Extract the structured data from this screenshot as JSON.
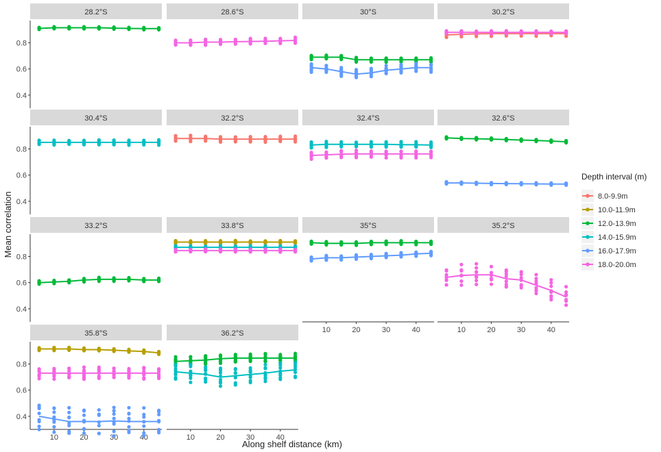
{
  "chart_data": {
    "type": "line",
    "xlabel": "Along shelf distance (km)",
    "ylabel": "Mean correlation",
    "xlim": [
      2,
      46
    ],
    "ylim": [
      0.3,
      0.97
    ],
    "x_ticks": [
      10,
      20,
      30,
      40
    ],
    "y_ticks": [
      0.4,
      0.6,
      0.8
    ],
    "x_tick_labels": [
      "10",
      "20",
      "30",
      "40"
    ],
    "y_tick_labels": [
      "0.4",
      "0.6",
      "0.8"
    ],
    "x": [
      5,
      10,
      15,
      20,
      25,
      30,
      35,
      40,
      45
    ],
    "legend": {
      "title": "Depth interval (m)",
      "position": "right",
      "entries": [
        {
          "label": "8.0-9.9m",
          "color": "#F8766D"
        },
        {
          "label": "10.0-11.9m",
          "color": "#B79F00"
        },
        {
          "label": "12.0-13.9m",
          "color": "#00BA38"
        },
        {
          "label": "14.0-15.9m",
          "color": "#00BFC4"
        },
        {
          "label": "16.0-17.9m",
          "color": "#619CFF"
        },
        {
          "label": "18.0-20.0m",
          "color": "#F564E3"
        }
      ]
    },
    "panels": [
      {
        "title": "28.2°S",
        "series": [
          {
            "name": "12.0-13.9m",
            "values": [
              0.91,
              0.915,
              0.915,
              0.915,
              0.915,
              0.912,
              0.91,
              0.908,
              0.908
            ],
            "spread": 0.015
          }
        ]
      },
      {
        "title": "28.6°S",
        "series": [
          {
            "name": "18.0-20.0m",
            "values": [
              0.8,
              0.8,
              0.805,
              0.805,
              0.808,
              0.81,
              0.812,
              0.815,
              0.818
            ],
            "spread": 0.04
          }
        ]
      },
      {
        "title": "30°S",
        "series": [
          {
            "name": "12.0-13.9m",
            "values": [
              0.69,
              0.69,
              0.69,
              0.67,
              0.67,
              0.67,
              0.67,
              0.67,
              0.67
            ],
            "spread": 0.03
          },
          {
            "name": "16.0-17.9m",
            "values": [
              0.61,
              0.6,
              0.58,
              0.56,
              0.57,
              0.59,
              0.6,
              0.61,
              0.61
            ],
            "spread": 0.06
          }
        ]
      },
      {
        "title": "30.2°S",
        "series": [
          {
            "name": "8.0-9.9m",
            "values": [
              0.86,
              0.865,
              0.868,
              0.87,
              0.87,
              0.87,
              0.87,
              0.87,
              0.87
            ],
            "spread": 0.035
          },
          {
            "name": "18.0-20.0m",
            "values": [
              0.88,
              0.88,
              0.88,
              0.88,
              0.88,
              0.88,
              0.88,
              0.88,
              0.88
            ],
            "spread": 0.02
          }
        ]
      },
      {
        "title": "30.4°S",
        "series": [
          {
            "name": "14.0-15.9m",
            "values": [
              0.85,
              0.85,
              0.85,
              0.85,
              0.85,
              0.85,
              0.85,
              0.85,
              0.85
            ],
            "spread": 0.035
          }
        ]
      },
      {
        "title": "32.2°S",
        "series": [
          {
            "name": "8.0-9.9m",
            "values": [
              0.88,
              0.88,
              0.88,
              0.875,
              0.875,
              0.875,
              0.875,
              0.875,
              0.875
            ],
            "spread": 0.04
          }
        ]
      },
      {
        "title": "32.4°S",
        "series": [
          {
            "name": "14.0-15.9m",
            "values": [
              0.83,
              0.835,
              0.835,
              0.835,
              0.835,
              0.835,
              0.833,
              0.832,
              0.83
            ],
            "spread": 0.04
          },
          {
            "name": "18.0-20.0m",
            "values": [
              0.75,
              0.755,
              0.76,
              0.762,
              0.762,
              0.762,
              0.762,
              0.762,
              0.762
            ],
            "spread": 0.05
          }
        ]
      },
      {
        "title": "32.6°S",
        "series": [
          {
            "name": "12.0-13.9m",
            "values": [
              0.885,
              0.88,
              0.878,
              0.875,
              0.872,
              0.868,
              0.865,
              0.86,
              0.855
            ],
            "spread": 0.015
          },
          {
            "name": "16.0-17.9m",
            "values": [
              0.54,
              0.54,
              0.538,
              0.536,
              0.535,
              0.534,
              0.533,
              0.532,
              0.532
            ],
            "spread": 0.015
          }
        ]
      },
      {
        "title": "33.2°S",
        "series": [
          {
            "name": "12.0-13.9m",
            "values": [
              0.6,
              0.605,
              0.61,
              0.62,
              0.625,
              0.625,
              0.625,
              0.62,
              0.62
            ],
            "spread": 0.025
          }
        ]
      },
      {
        "title": "33.8°S",
        "series": [
          {
            "name": "10.0-11.9m",
            "values": [
              0.91,
              0.91,
              0.91,
              0.91,
              0.91,
              0.91,
              0.91,
              0.91,
              0.91
            ],
            "spread": 0.02
          },
          {
            "name": "14.0-15.9m",
            "values": [
              0.87,
              0.87,
              0.87,
              0.87,
              0.87,
              0.87,
              0.87,
              0.87,
              0.87
            ],
            "spread": 0.02
          },
          {
            "name": "18.0-20.0m",
            "values": [
              0.845,
              0.845,
              0.845,
              0.845,
              0.845,
              0.845,
              0.845,
              0.845,
              0.845
            ],
            "spread": 0.02
          }
        ]
      },
      {
        "title": "35°S",
        "series": [
          {
            "name": "12.0-13.9m",
            "values": [
              0.905,
              0.9,
              0.9,
              0.9,
              0.905,
              0.905,
              0.905,
              0.905,
              0.905
            ],
            "spread": 0.025
          },
          {
            "name": "16.0-17.9m",
            "values": [
              0.78,
              0.79,
              0.79,
              0.795,
              0.8,
              0.805,
              0.81,
              0.82,
              0.825
            ],
            "spread": 0.03
          }
        ]
      },
      {
        "title": "35.2°S",
        "series": [
          {
            "name": "18.0-20.0m",
            "values": [
              0.64,
              0.655,
              0.66,
              0.66,
              0.63,
              0.62,
              0.58,
              0.54,
              0.49
            ],
            "spread": 0.14
          }
        ]
      },
      {
        "title": "35.8°S",
        "series": [
          {
            "name": "10.0-11.9m",
            "values": [
              0.915,
              0.915,
              0.915,
              0.91,
              0.91,
              0.905,
              0.9,
              0.895,
              0.885
            ],
            "spread": 0.02
          },
          {
            "name": "18.0-20.0m",
            "values": [
              0.73,
              0.73,
              0.73,
              0.73,
              0.73,
              0.73,
              0.73,
              0.73,
              0.73
            ],
            "spread": 0.08
          },
          {
            "name": "16.0-17.9m",
            "values": [
              0.4,
              0.38,
              0.36,
              0.36,
              0.36,
              0.365,
              0.36,
              0.36,
              0.36
            ],
            "spread": 0.2
          }
        ]
      },
      {
        "title": "36.2°S",
        "series": [
          {
            "name": "12.0-13.9m",
            "values": [
              0.82,
              0.825,
              0.83,
              0.84,
              0.845,
              0.845,
              0.845,
              0.845,
              0.845
            ],
            "spread": 0.06
          },
          {
            "name": "14.0-15.9m",
            "values": [
              0.74,
              0.73,
              0.72,
              0.7,
              0.71,
              0.72,
              0.73,
              0.745,
              0.755
            ],
            "spread": 0.12
          }
        ]
      }
    ]
  }
}
